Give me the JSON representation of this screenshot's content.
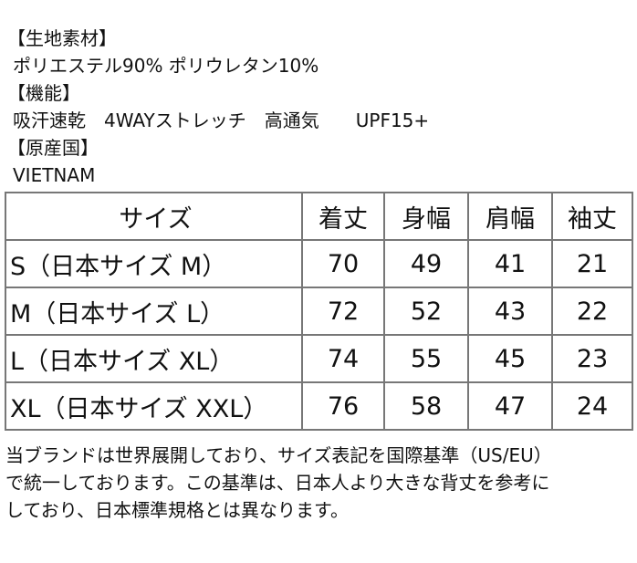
{
  "sections": [
    {
      "heading": "【生地素材】",
      "body": "ポリエステル90% ポリウレタン10%"
    },
    {
      "heading": "【機能】",
      "body": "吸汗速乾　4WAYストレッチ　高通気　　UPF15+"
    },
    {
      "heading": "【原産国】",
      "body": "VIETNAM"
    }
  ],
  "table": {
    "header": [
      "サイズ",
      "着丈",
      "身幅",
      "肩幅",
      "袖丈"
    ],
    "rows": [
      [
        "S（日本サイズ M）",
        70,
        49,
        41,
        21
      ],
      [
        "M（日本サイズ L）",
        72,
        52,
        43,
        22
      ],
      [
        "L（日本サイズ XL）",
        74,
        55,
        45,
        23
      ],
      [
        "XL（日本サイズ XXL）",
        76,
        58,
        47,
        24
      ]
    ]
  },
  "note": [
    "当ブランドは世界展開しており、サイズ表記を国際基準（US/EU）",
    "で統一しております。この基準は、日本人より大きな背丈を参考に",
    "しており、日本標準規格とは異なります。"
  ]
}
